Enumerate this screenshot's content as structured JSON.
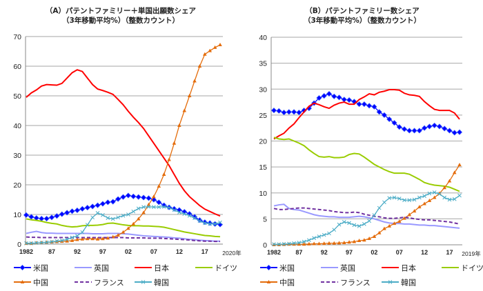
{
  "chart_data": [
    {
      "type": "line",
      "title": "（A）パテントファミリー＋単国出願数シェア",
      "subtitle": "（3年移動平均%）（整数カウント）",
      "x_start": 1982,
      "x_end": 2020,
      "x_tick_labels": [
        "1982",
        "87",
        "92",
        "97",
        "02",
        "07",
        "12",
        "17"
      ],
      "x_end_label": "2020年",
      "ylim": [
        0,
        70
      ],
      "y_ticks": [
        0,
        10,
        20,
        30,
        40,
        50,
        60,
        70
      ],
      "grid": true,
      "legend": "bottom",
      "series": [
        {
          "name": "米国",
          "color": "#0000ff",
          "marker": "diamond",
          "values": [
            9.8,
            9.2,
            8.8,
            8.6,
            8.6,
            9,
            9.5,
            10.1,
            10.6,
            11.1,
            11.4,
            11.9,
            12.3,
            12.7,
            13.1,
            13.6,
            14.1,
            14.3,
            15.2,
            15.9,
            16.4,
            16.1,
            15.9,
            15.7,
            15.5,
            15,
            14.1,
            13.1,
            12.4,
            11.9,
            11.5,
            10.9,
            10.2,
            9.2,
            8.1,
            7.4,
            7.1,
            6.8,
            6.6
          ]
        },
        {
          "name": "英国",
          "color": "#9999ff",
          "marker": "none",
          "values": [
            3.6,
            4,
            4.3,
            3.9,
            3.7,
            3.7,
            3.6,
            3.6,
            3.6,
            3.6,
            3.6,
            3.6,
            3.6,
            3.5,
            3.5,
            3.5,
            3.6,
            3.6,
            3.6,
            3.5,
            3.4,
            3.2,
            3,
            2.8,
            2.7,
            2.6,
            2.5,
            2.4,
            2.3,
            2.1,
            2,
            1.8,
            1.6,
            1.5,
            1.3,
            1.2,
            1.1,
            1,
            1
          ]
        },
        {
          "name": "日本",
          "color": "#ff0000",
          "marker": "none",
          "values": [
            49.5,
            51,
            52,
            53.3,
            53.8,
            53.7,
            53.6,
            54.2,
            56,
            57.8,
            58.8,
            58.2,
            56,
            53.8,
            52.3,
            51.8,
            51.2,
            50.5,
            48.8,
            47,
            44.8,
            42.8,
            41,
            39,
            36.5,
            34,
            31.5,
            29,
            26.5,
            23.5,
            20.5,
            18,
            16,
            14.5,
            13,
            11.8,
            11,
            10.2,
            9.5
          ]
        },
        {
          "name": "ドイツ",
          "color": "#99cc00",
          "marker": "none",
          "values": [
            8.5,
            8.2,
            8,
            7.7,
            7.3,
            7,
            6.8,
            6.3,
            6,
            5.8,
            5.9,
            6.2,
            6.3,
            6.3,
            6.4,
            6.6,
            7,
            7.1,
            6.8,
            6.5,
            6.3,
            6.2,
            6.2,
            6.1,
            6.1,
            6,
            5.9,
            5.7,
            5.3,
            4.9,
            4.5,
            4.1,
            3.8,
            3.5,
            3.2,
            2.9,
            2.8,
            2.6,
            2.5
          ]
        },
        {
          "name": "中国",
          "color": "#e46c0a",
          "marker": "triangle",
          "values": [
            0.2,
            0.2,
            0.4,
            0.5,
            0.6,
            0.7,
            0.8,
            0.9,
            1,
            1.2,
            1.5,
            1.7,
            1.8,
            1.8,
            1.7,
            1.8,
            2,
            2.4,
            3,
            4,
            5.3,
            6.8,
            8.5,
            10.6,
            13.3,
            16,
            19.5,
            23.5,
            28.5,
            34,
            40,
            45,
            50,
            55,
            60,
            64,
            65.2,
            66.3,
            67.2
          ]
        },
        {
          "name": "フランス",
          "color": "#7030a0",
          "marker": "dash",
          "values": [
            2.4,
            2.3,
            2.3,
            2.2,
            2.2,
            2.2,
            2.2,
            2.2,
            2.2,
            2.2,
            2.2,
            2.2,
            2.2,
            2.2,
            2.2,
            2.2,
            2.2,
            2.2,
            2.2,
            2.2,
            2.1,
            2.1,
            2.1,
            2.1,
            2,
            2,
            2,
            1.9,
            1.8,
            1.7,
            1.6,
            1.5,
            1.4,
            1.2,
            1.1,
            1,
            1,
            0.9,
            0.9
          ]
        },
        {
          "name": "韓国",
          "color": "#4bacc6",
          "marker": "x",
          "values": [
            0.3,
            0.3,
            0.4,
            0.5,
            0.6,
            0.8,
            1,
            1.2,
            1.6,
            2.2,
            2.8,
            4,
            6.5,
            9,
            10.5,
            9.8,
            8.8,
            8.5,
            9,
            9.6,
            10,
            11,
            12,
            12.5,
            12.6,
            12.5,
            12.5,
            12.6,
            12.3,
            11.5,
            10.7,
            10.2,
            9.6,
            8.8,
            7.8,
            7.1,
            6.8,
            6.8,
            7.3
          ]
        }
      ]
    },
    {
      "type": "line",
      "title": "（B）パテントファミリー数シェア",
      "subtitle": "（3年移動平均%）（整数カウント）",
      "x_start": 1982,
      "x_end": 2019,
      "x_tick_labels": [
        "1982",
        "87",
        "92",
        "97",
        "02",
        "07",
        "12",
        "17"
      ],
      "x_end_label": "2019年",
      "ylim": [
        0,
        40
      ],
      "y_ticks": [
        0,
        5,
        10,
        15,
        20,
        25,
        30,
        35,
        40
      ],
      "grid": true,
      "legend": "bottom",
      "series": [
        {
          "name": "米国",
          "color": "#0000ff",
          "marker": "diamond",
          "values": [
            25.9,
            25.8,
            25.5,
            25.6,
            25.6,
            25.5,
            25.9,
            26.3,
            27.3,
            28.3,
            28.7,
            29.1,
            28.6,
            28.4,
            28,
            27.9,
            27.6,
            27.1,
            27.1,
            26.8,
            26.6,
            25.6,
            25,
            24.2,
            23.5,
            22.7,
            22.3,
            22,
            22,
            22,
            22.5,
            22.8,
            23,
            22.8,
            22.4,
            22,
            21.6,
            21.7
          ]
        },
        {
          "name": "英国",
          "color": "#9999ff",
          "marker": "none",
          "values": [
            7.5,
            7.7,
            7.8,
            7,
            6.8,
            6.7,
            6.4,
            6.1,
            5.8,
            5.6,
            5.5,
            5.4,
            5.4,
            5.3,
            5.3,
            5.3,
            5.4,
            5.5,
            5.4,
            5.2,
            5,
            4.7,
            4.4,
            4.2,
            4.1,
            4.1,
            4,
            4,
            3.9,
            3.8,
            3.8,
            3.7,
            3.7,
            3.6,
            3.5,
            3.4,
            3.3,
            3.2
          ]
        },
        {
          "name": "日本",
          "color": "#ff0000",
          "marker": "none",
          "values": [
            20.4,
            21,
            21.5,
            22.5,
            23.3,
            24.5,
            25.6,
            26.7,
            27.3,
            27,
            26.6,
            26.3,
            26.9,
            27.3,
            27.5,
            27.1,
            27.1,
            28,
            28.5,
            29.1,
            28.9,
            29.4,
            29.6,
            29.9,
            29.9,
            29.8,
            29.2,
            28.9,
            28.8,
            28.6,
            27.6,
            26.8,
            26.1,
            25.9,
            25.9,
            25.9,
            25.4,
            24.2
          ]
        },
        {
          "name": "ドイツ",
          "color": "#99cc00",
          "marker": "none",
          "values": [
            20.7,
            20.4,
            20.3,
            20.4,
            20,
            19.6,
            19.1,
            18.3,
            17.6,
            17,
            16.9,
            17,
            16.8,
            16.8,
            16.9,
            17.4,
            17.6,
            17.5,
            16.9,
            16.2,
            15.5,
            15,
            14.5,
            14.1,
            13.8,
            13.8,
            13.8,
            13.6,
            13.1,
            12.6,
            12,
            11.7,
            11.5,
            11.4,
            11.3,
            11.1,
            10.7,
            10.3
          ]
        },
        {
          "name": "中国",
          "color": "#e46c0a",
          "marker": "triangle",
          "values": [
            0,
            0,
            0.05,
            0.1,
            0.1,
            0.1,
            0.1,
            0.15,
            0.2,
            0.2,
            0.25,
            0.3,
            0.3,
            0.35,
            0.4,
            0.5,
            0.6,
            0.8,
            0.9,
            1.2,
            1.6,
            2.3,
            3.1,
            3.6,
            4.1,
            4.5,
            5.1,
            5.8,
            6.5,
            7.3,
            7.9,
            8.5,
            9.1,
            9.9,
            11,
            12.3,
            13.9,
            15.4
          ]
        },
        {
          "name": "フランス",
          "color": "#7030a0",
          "marker": "dash",
          "values": [
            7,
            6.8,
            6.8,
            6.9,
            7,
            7.1,
            7.1,
            7,
            6.9,
            6.8,
            6.7,
            6.6,
            6.4,
            6.3,
            6.2,
            6.2,
            6.3,
            6.2,
            5.9,
            5.7,
            5.5,
            5.4,
            5.2,
            5.1,
            5.1,
            5.2,
            5.3,
            5.2,
            5,
            4.9,
            4.8,
            4.8,
            4.7,
            4.6,
            4.5,
            4.4,
            4.2,
            4
          ]
        },
        {
          "name": "韓国",
          "color": "#4bacc6",
          "marker": "x",
          "values": [
            0.1,
            0.1,
            0.15,
            0.2,
            0.3,
            0.4,
            0.6,
            0.9,
            1.3,
            1.6,
            1.9,
            2.2,
            2.9,
            3.9,
            4.4,
            4.2,
            3.8,
            3.6,
            4,
            4.6,
            5.7,
            7.1,
            8.2,
            9,
            9.1,
            8.9,
            8.6,
            8.6,
            8.7,
            9.1,
            9.4,
            9.9,
            10.1,
            9.8,
            9.1,
            8.7,
            8.8,
            9.5
          ]
        }
      ]
    }
  ]
}
